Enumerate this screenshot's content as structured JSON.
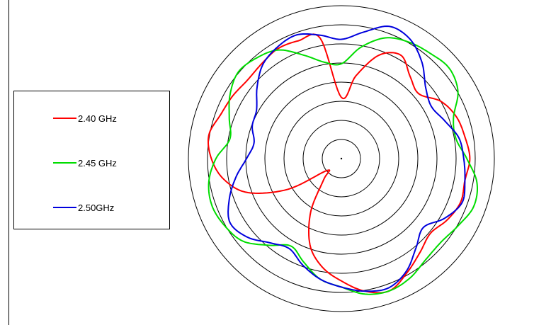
{
  "chart_data": {
    "type": "polar",
    "grid_rings": 8,
    "legend_position": "left",
    "series": [
      {
        "name": "2.40 GHz",
        "color": "#ff0000",
        "r": [
          0.4,
          0.55,
          0.72,
          0.78,
          0.7,
          0.66,
          0.75,
          0.8,
          0.82,
          0.84,
          0.82,
          0.83,
          0.8,
          0.76,
          0.8,
          0.86,
          0.92,
          0.88,
          0.8,
          0.72,
          0.6,
          0.4,
          0.18,
          0.12,
          0.4,
          0.65,
          0.78,
          0.85,
          0.88,
          0.84,
          0.82,
          0.8,
          0.81,
          0.83,
          0.82,
          0.8
        ]
      },
      {
        "name": "2.45 GHz",
        "color": "#00dd00",
        "r": [
          0.62,
          0.74,
          0.84,
          0.88,
          0.9,
          0.92,
          0.88,
          0.78,
          0.76,
          0.82,
          0.9,
          0.92,
          0.88,
          0.85,
          0.86,
          0.9,
          0.92,
          0.9,
          0.84,
          0.8,
          0.72,
          0.66,
          0.74,
          0.84,
          0.88,
          0.9,
          0.88,
          0.82,
          0.74,
          0.78,
          0.84,
          0.88,
          0.86,
          0.82,
          0.72,
          0.64
        ]
      },
      {
        "name": "2.50GHz",
        "color": "#0000dd",
        "r": [
          0.78,
          0.84,
          0.92,
          0.9,
          0.82,
          0.72,
          0.68,
          0.72,
          0.78,
          0.8,
          0.82,
          0.84,
          0.78,
          0.7,
          0.76,
          0.85,
          0.9,
          0.88,
          0.84,
          0.8,
          0.74,
          0.68,
          0.72,
          0.8,
          0.84,
          0.78,
          0.7,
          0.62,
          0.58,
          0.62,
          0.64,
          0.72,
          0.8,
          0.84,
          0.86,
          0.82
        ]
      }
    ]
  }
}
